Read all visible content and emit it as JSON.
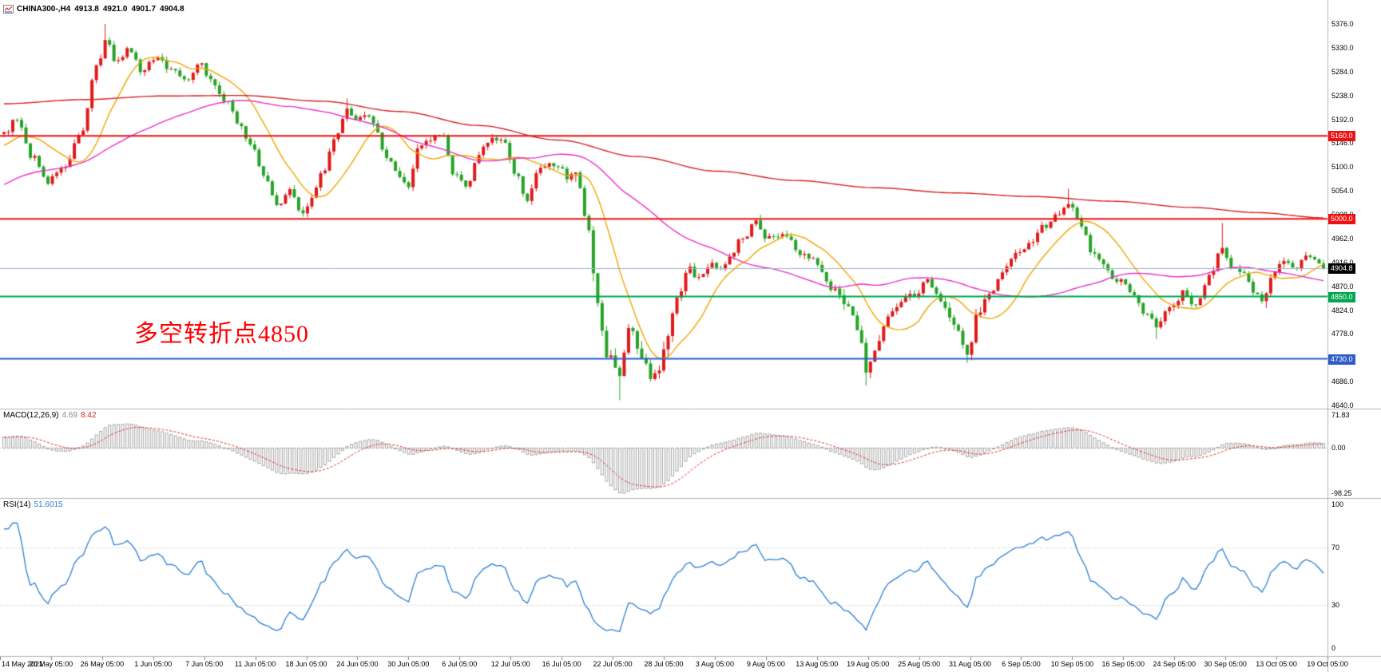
{
  "header": {
    "symbol_period": "CHINA300-,H4",
    "open": "4913.8",
    "high": "4921.0",
    "low": "4901.7",
    "close": "4904.8"
  },
  "annotation": {
    "text": "多空转折点4850",
    "color": "#ff0000"
  },
  "panes": {
    "macd": {
      "label": "MACD(12,26,9)",
      "value_main": "4.69",
      "value_signal": "8.42",
      "axis_labels": [
        "71.83",
        "0.00",
        "-98.25"
      ]
    },
    "rsi": {
      "label": "RSI(14)",
      "value": "51.6015",
      "axis_labels": [
        "100",
        "70",
        "30",
        "0"
      ],
      "levels": [
        70,
        30
      ]
    }
  },
  "price_axis": {
    "labels": [
      "5376.0",
      "5330.0",
      "5284.0",
      "5238.0",
      "5192.0",
      "5146.0",
      "5100.0",
      "5054.0",
      "5008.0",
      "4962.0",
      "4916.0",
      "4870.0",
      "4824.0",
      "4778.0",
      "4732.0",
      "4686.0",
      "4640.0"
    ]
  },
  "time_axis": {
    "labels": [
      "14 May 2021",
      "20 May 05:00",
      "26 May 05:00",
      "1 Jun 05:00",
      "7 Jun 05:00",
      "11 Jun 05:00",
      "18 Jun 05:00",
      "24 Jun 05:00",
      "30 Jun 05:00",
      "6 Jul 05:00",
      "12 Jul 05:00",
      "16 Jul 05:00",
      "22 Jul 05:00",
      "28 Jul 05:00",
      "3 Aug 05:00",
      "9 Aug 05:00",
      "13 Aug 05:00",
      "19 Aug 05:00",
      "25 Aug 05:00",
      "31 Aug 05:00",
      "6 Sep 05:00",
      "10 Sep 05:00",
      "16 Sep 05:00",
      "24 Sep 05:00",
      "30 Sep 05:00",
      "13 Oct 05:00",
      "19 Oct 05:00"
    ]
  },
  "levels": [
    {
      "value": 5160.0,
      "label": "5160.0",
      "color": "#ee1111"
    },
    {
      "value": 5000.0,
      "label": "5000.0",
      "color": "#ee1111"
    },
    {
      "value": 4850.0,
      "label": "4850.0",
      "color": "#00a651"
    },
    {
      "value": 4730.0,
      "label": "4730.0",
      "color": "#2d5cc8"
    }
  ],
  "current_price": {
    "value": 4904.8,
    "label": "4904.8",
    "line_color": "#9fb6cc",
    "box_color": "#000000"
  },
  "chart_data": {
    "type": "candlestick",
    "symbol": "CHINA300-",
    "timeframe": "H4",
    "title": "CHINA300-,H4",
    "ylim": [
      4640,
      5376
    ],
    "price_step": 46.0,
    "visible_bars": 301,
    "prehistory_bars": 60,
    "seed": 1234567,
    "last_ohlc": {
      "open": 4913.8,
      "high": 4921.0,
      "low": 4901.7,
      "close": 4904.8
    },
    "price_path_anchors": [
      [
        -0.2,
        4948
      ],
      [
        -0.13,
        5015
      ],
      [
        -0.06,
        5100
      ],
      [
        -0.01,
        5150
      ],
      [
        0.0,
        5160
      ],
      [
        0.01,
        5192
      ],
      [
        0.022,
        5122
      ],
      [
        0.032,
        5070
      ],
      [
        0.045,
        5108
      ],
      [
        0.058,
        5168
      ],
      [
        0.07,
        5288
      ],
      [
        0.077,
        5338
      ],
      [
        0.085,
        5298
      ],
      [
        0.095,
        5330
      ],
      [
        0.105,
        5288
      ],
      [
        0.115,
        5314
      ],
      [
        0.128,
        5282
      ],
      [
        0.138,
        5266
      ],
      [
        0.148,
        5294
      ],
      [
        0.158,
        5260
      ],
      [
        0.168,
        5236
      ],
      [
        0.178,
        5190
      ],
      [
        0.188,
        5145
      ],
      [
        0.198,
        5075
      ],
      [
        0.208,
        5026
      ],
      [
        0.217,
        5050
      ],
      [
        0.226,
        5014
      ],
      [
        0.234,
        5042
      ],
      [
        0.242,
        5098
      ],
      [
        0.252,
        5168
      ],
      [
        0.26,
        5214
      ],
      [
        0.267,
        5184
      ],
      [
        0.274,
        5204
      ],
      [
        0.282,
        5170
      ],
      [
        0.29,
        5110
      ],
      [
        0.298,
        5090
      ],
      [
        0.306,
        5066
      ],
      [
        0.315,
        5134
      ],
      [
        0.324,
        5150
      ],
      [
        0.332,
        5162
      ],
      [
        0.341,
        5080
      ],
      [
        0.35,
        5062
      ],
      [
        0.359,
        5120
      ],
      [
        0.368,
        5146
      ],
      [
        0.377,
        5157
      ],
      [
        0.387,
        5090
      ],
      [
        0.396,
        5038
      ],
      [
        0.405,
        5086
      ],
      [
        0.414,
        5106
      ],
      [
        0.424,
        5088
      ],
      [
        0.434,
        5070
      ],
      [
        0.442,
        4972
      ],
      [
        0.45,
        4830
      ],
      [
        0.458,
        4728
      ],
      [
        0.466,
        4692
      ],
      [
        0.473,
        4790
      ],
      [
        0.481,
        4742
      ],
      [
        0.489,
        4698
      ],
      [
        0.496,
        4728
      ],
      [
        0.503,
        4772
      ],
      [
        0.511,
        4852
      ],
      [
        0.519,
        4898
      ],
      [
        0.527,
        4880
      ],
      [
        0.535,
        4910
      ],
      [
        0.543,
        4900
      ],
      [
        0.551,
        4938
      ],
      [
        0.56,
        4968
      ],
      [
        0.57,
        4996
      ],
      [
        0.577,
        4970
      ],
      [
        0.585,
        4958
      ],
      [
        0.594,
        4964
      ],
      [
        0.603,
        4935
      ],
      [
        0.612,
        4928
      ],
      [
        0.621,
        4888
      ],
      [
        0.63,
        4862
      ],
      [
        0.639,
        4840
      ],
      [
        0.647,
        4786
      ],
      [
        0.654,
        4706
      ],
      [
        0.661,
        4758
      ],
      [
        0.67,
        4818
      ],
      [
        0.68,
        4840
      ],
      [
        0.692,
        4852
      ],
      [
        0.7,
        4880
      ],
      [
        0.71,
        4842
      ],
      [
        0.72,
        4792
      ],
      [
        0.731,
        4738
      ],
      [
        0.739,
        4826
      ],
      [
        0.749,
        4866
      ],
      [
        0.759,
        4904
      ],
      [
        0.769,
        4944
      ],
      [
        0.779,
        4962
      ],
      [
        0.79,
        4984
      ],
      [
        0.8,
        5016
      ],
      [
        0.808,
        5040
      ],
      [
        0.816,
        4986
      ],
      [
        0.825,
        4932
      ],
      [
        0.835,
        4900
      ],
      [
        0.846,
        4878
      ],
      [
        0.856,
        4850
      ],
      [
        0.866,
        4818
      ],
      [
        0.874,
        4790
      ],
      [
        0.885,
        4832
      ],
      [
        0.894,
        4858
      ],
      [
        0.903,
        4838
      ],
      [
        0.913,
        4885
      ],
      [
        0.923,
        4944
      ],
      [
        0.931,
        4915
      ],
      [
        0.94,
        4900
      ],
      [
        0.948,
        4866
      ],
      [
        0.955,
        4846
      ],
      [
        0.962,
        4894
      ],
      [
        0.97,
        4916
      ],
      [
        0.978,
        4904
      ],
      [
        0.986,
        4920
      ],
      [
        0.993,
        4912
      ],
      [
        1.0,
        4906
      ]
    ],
    "pins": [
      [
        0.077,
        "high",
        5376
      ],
      [
        0.226,
        "low",
        5004
      ],
      [
        0.26,
        "high",
        5232
      ],
      [
        0.466,
        "low",
        4650
      ],
      [
        0.489,
        "low",
        4686
      ],
      [
        0.572,
        "high",
        5008
      ],
      [
        0.654,
        "low",
        4678
      ],
      [
        0.731,
        "low",
        4722
      ],
      [
        0.808,
        "high",
        5058
      ],
      [
        0.874,
        "low",
        4768
      ],
      [
        0.923,
        "high",
        4992
      ],
      [
        0.955,
        "low",
        4828
      ]
    ],
    "red_ma_anchors": [
      [
        0,
        5222
      ],
      [
        0.06,
        5230
      ],
      [
        0.12,
        5237
      ],
      [
        0.18,
        5238
      ],
      [
        0.24,
        5227
      ],
      [
        0.3,
        5207
      ],
      [
        0.36,
        5180
      ],
      [
        0.42,
        5152
      ],
      [
        0.48,
        5120
      ],
      [
        0.54,
        5092
      ],
      [
        0.6,
        5074
      ],
      [
        0.66,
        5060
      ],
      [
        0.72,
        5050
      ],
      [
        0.78,
        5043
      ],
      [
        0.84,
        5034
      ],
      [
        0.9,
        5022
      ],
      [
        0.95,
        5012
      ],
      [
        1,
        5002
      ]
    ],
    "indicators": {
      "ma_fast_period": 13,
      "ma_mid_period": 55,
      "macd": [
        12,
        26,
        9
      ],
      "rsi": 14
    },
    "macd_scale": {
      "max": 71.83,
      "min": -98.25
    },
    "rsi_scale": {
      "max": 100,
      "min": 0,
      "levels": [
        70,
        30
      ]
    },
    "colors": {
      "up": "#e01919",
      "down": "#26a326",
      "ma_fast": "#f0a500",
      "ma_mid": "#e632c8",
      "ma_slow": "#d62222",
      "macd_hist": "#a6a6a6",
      "macd_signal": "#e03030",
      "rsi": "#2a7fd4",
      "grid_dotted": "#bdbdbd",
      "separator": "#b5b5b5"
    }
  }
}
